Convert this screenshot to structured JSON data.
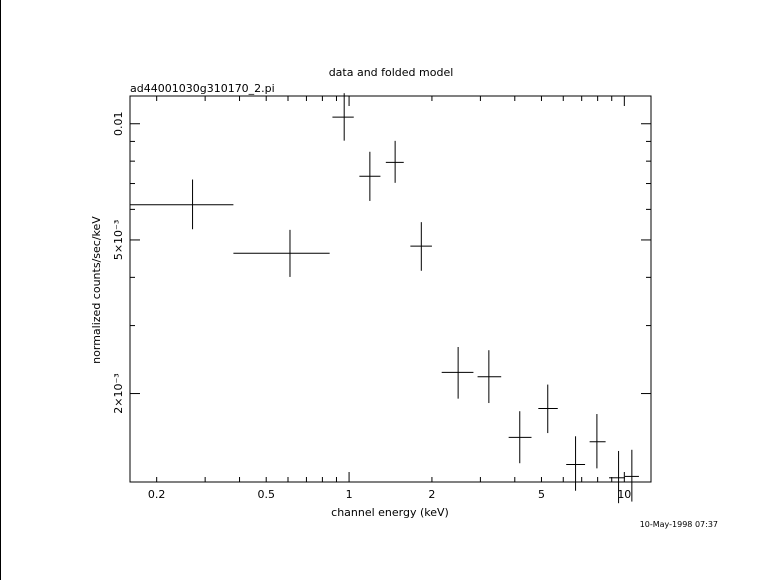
{
  "chart_data": {
    "type": "scatter",
    "title": "data and folded model",
    "subtitle": "ad44001030g310170_2.pi",
    "xlabel": "channel energy (keV)",
    "ylabel": "normalized counts/sec/keV",
    "x_scale": "log",
    "y_scale": "log",
    "xlim": [
      0.16,
      12.5
    ],
    "ylim": [
      0.00118,
      0.0118
    ],
    "x_ticks": [
      {
        "value": 0.2,
        "label": "0.2"
      },
      {
        "value": 0.5,
        "label": "0.5"
      },
      {
        "value": 1,
        "label": "1"
      },
      {
        "value": 2,
        "label": "2"
      },
      {
        "value": 5,
        "label": "5"
      },
      {
        "value": 10,
        "label": "10"
      }
    ],
    "y_ticks": [
      {
        "value": 0.002,
        "label": "2×10⁻³"
      },
      {
        "value": 0.005,
        "label": "5×10⁻³"
      },
      {
        "value": 0.01,
        "label": "0.01"
      }
    ],
    "points": [
      {
        "x": 0.27,
        "xlo": 0.16,
        "xhi": 0.38,
        "y": 0.00617,
        "ylo": 0.00533,
        "yhi": 0.00717
      },
      {
        "x": 0.61,
        "xlo": 0.38,
        "xhi": 0.85,
        "y": 0.00462,
        "ylo": 0.00401,
        "yhi": 0.00531
      },
      {
        "x": 0.96,
        "xlo": 0.87,
        "xhi": 1.04,
        "y": 0.0104,
        "ylo": 0.00904,
        "yhi": 0.012
      },
      {
        "x": 1.19,
        "xlo": 1.09,
        "xhi": 1.3,
        "y": 0.00731,
        "ylo": 0.00631,
        "yhi": 0.00846
      },
      {
        "x": 1.47,
        "xlo": 1.36,
        "xhi": 1.58,
        "y": 0.00794,
        "ylo": 0.00703,
        "yhi": 0.00903
      },
      {
        "x": 1.83,
        "xlo": 1.67,
        "xhi": 2.0,
        "y": 0.00482,
        "ylo": 0.00416,
        "yhi": 0.00556
      },
      {
        "x": 2.49,
        "xlo": 2.17,
        "xhi": 2.83,
        "y": 0.00227,
        "ylo": 0.00194,
        "yhi": 0.00264
      },
      {
        "x": 3.22,
        "xlo": 2.93,
        "xhi": 3.57,
        "y": 0.00221,
        "ylo": 0.00189,
        "yhi": 0.00259
      },
      {
        "x": 4.17,
        "xlo": 3.8,
        "xhi": 4.6,
        "y": 0.00154,
        "ylo": 0.00132,
        "yhi": 0.0018
      },
      {
        "x": 5.27,
        "xlo": 4.87,
        "xhi": 5.73,
        "y": 0.00183,
        "ylo": 0.00158,
        "yhi": 0.00211
      },
      {
        "x": 6.65,
        "xlo": 6.15,
        "xhi": 7.2,
        "y": 0.00131,
        "ylo": 0.00112,
        "yhi": 0.00155
      },
      {
        "x": 7.95,
        "xlo": 7.48,
        "xhi": 8.55,
        "y": 0.0015,
        "ylo": 0.00128,
        "yhi": 0.00177
      },
      {
        "x": 9.53,
        "xlo": 8.8,
        "xhi": 10.05,
        "y": 0.00121,
        "ylo": 0.00104,
        "yhi": 0.00142
      },
      {
        "x": 10.65,
        "xlo": 10.05,
        "xhi": 11.3,
        "y": 0.00122,
        "ylo": 0.00105,
        "yhi": 0.00143
      }
    ]
  },
  "timestamp": "10-May-1998 07:37"
}
